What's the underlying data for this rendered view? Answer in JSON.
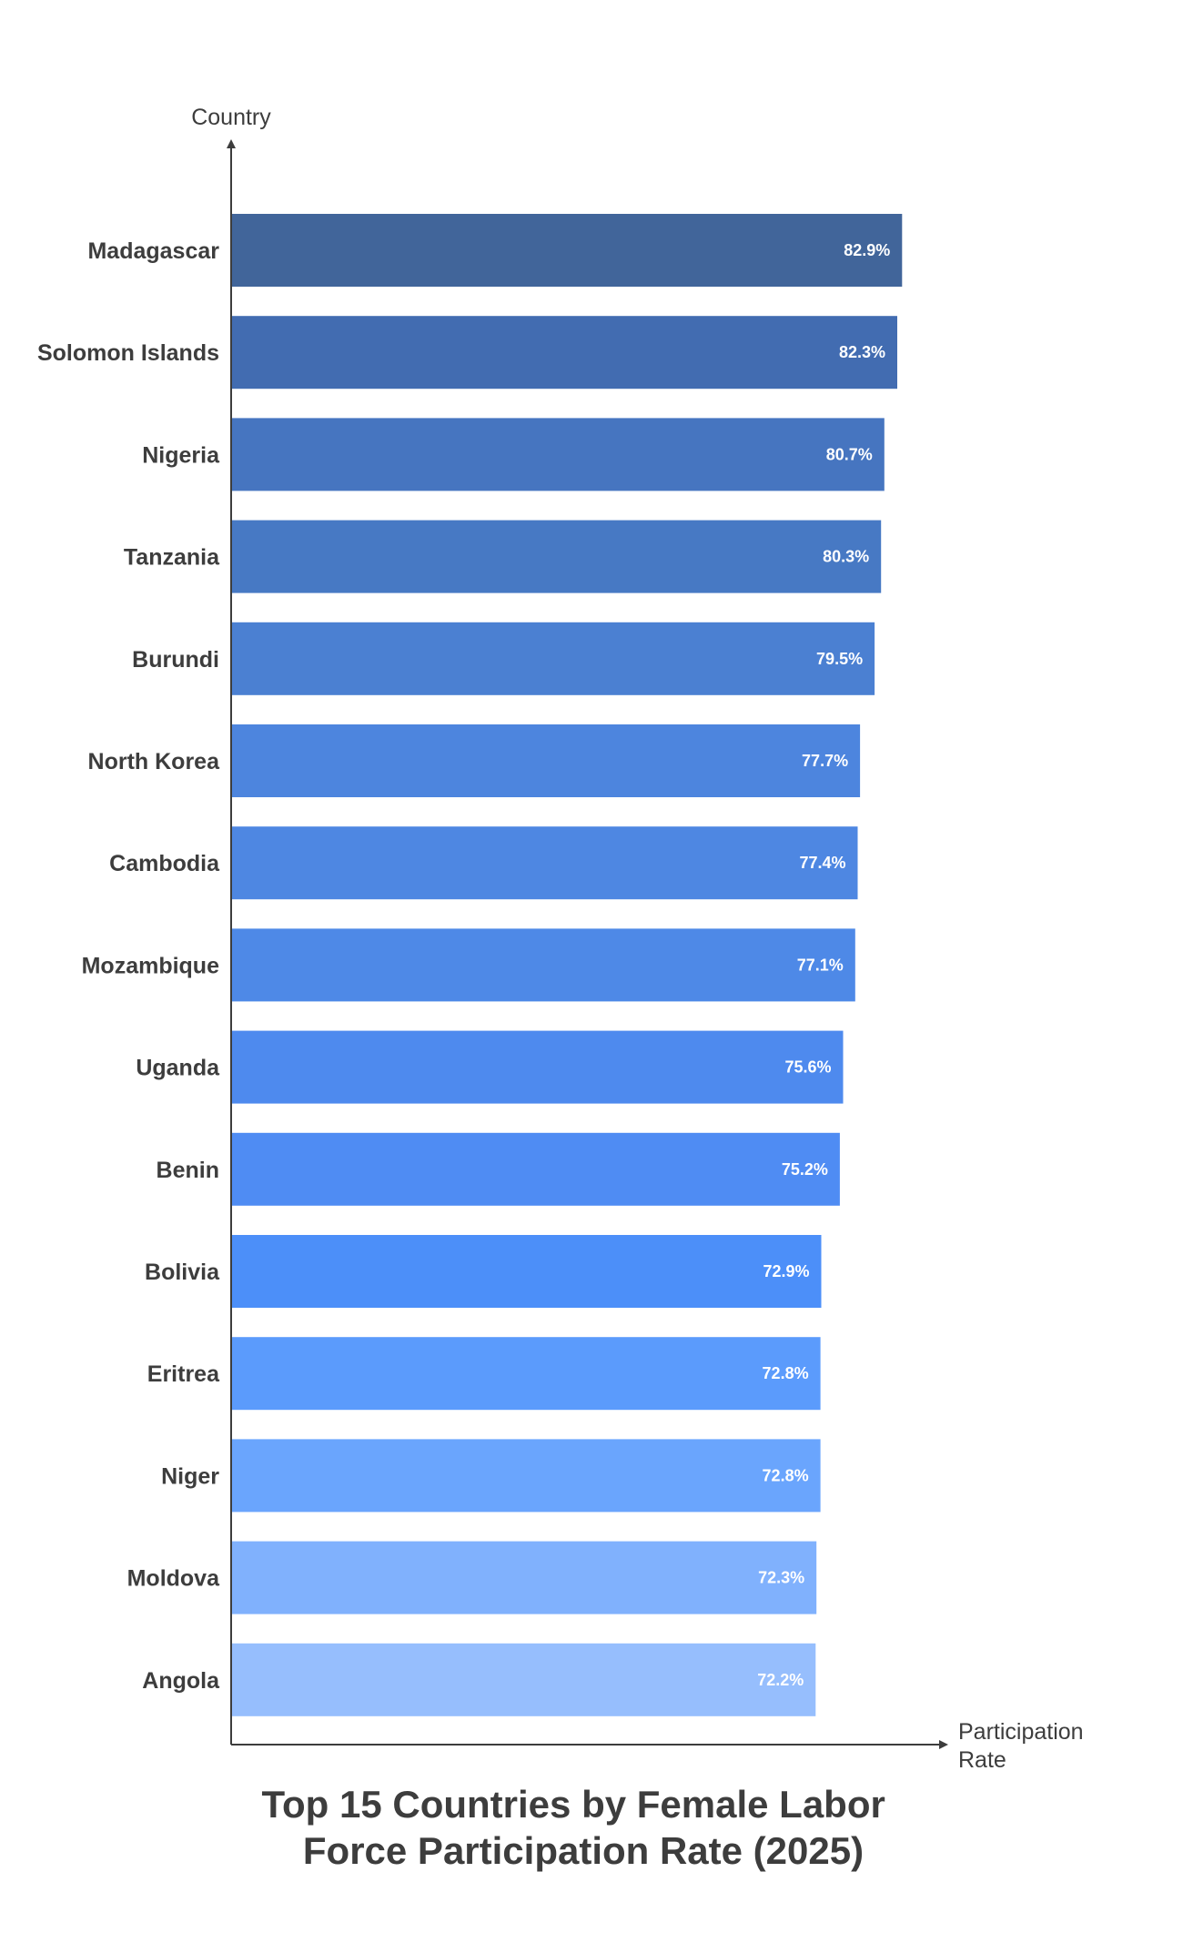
{
  "chart_data": {
    "type": "bar",
    "orientation": "horizontal",
    "title_lines": [
      "Top 15 Countries by Female Labor",
      "Force Participation Rate (2025)"
    ],
    "ylabel": "Country",
    "xlabel_lines": [
      "Participation",
      "Rate"
    ],
    "categories": [
      "Madagascar",
      "Solomon Islands",
      "Nigeria",
      "Tanzania",
      "Burundi",
      "North Korea",
      "Cambodia",
      "Mozambique",
      "Uganda",
      "Benin",
      "Bolivia",
      "Eritrea",
      "Niger",
      "Moldova",
      "Angola"
    ],
    "values": [
      82.9,
      82.3,
      80.7,
      80.3,
      79.5,
      77.7,
      77.4,
      77.1,
      75.6,
      75.2,
      72.9,
      72.8,
      72.8,
      72.3,
      72.2
    ],
    "value_labels": [
      "82.9%",
      "82.3%",
      "80.7%",
      "80.3%",
      "79.5%",
      "77.7%",
      "77.4%",
      "77.1%",
      "75.6%",
      "75.2%",
      "72.9%",
      "72.8%",
      "72.8%",
      "72.3%",
      "72.2%"
    ],
    "colors": [
      "#41659a",
      "#426cb1",
      "#4675c0",
      "#4779c4",
      "#4b80d2",
      "#4d85de",
      "#4e87e2",
      "#4e89e7",
      "#4e8aee",
      "#4f8cf3",
      "#4c8ff9",
      "#5b9bfc",
      "#6aa5fd",
      "#80b1fd",
      "#96befd"
    ],
    "xlim": [
      0,
      100
    ],
    "grid": false,
    "legend": "none"
  }
}
